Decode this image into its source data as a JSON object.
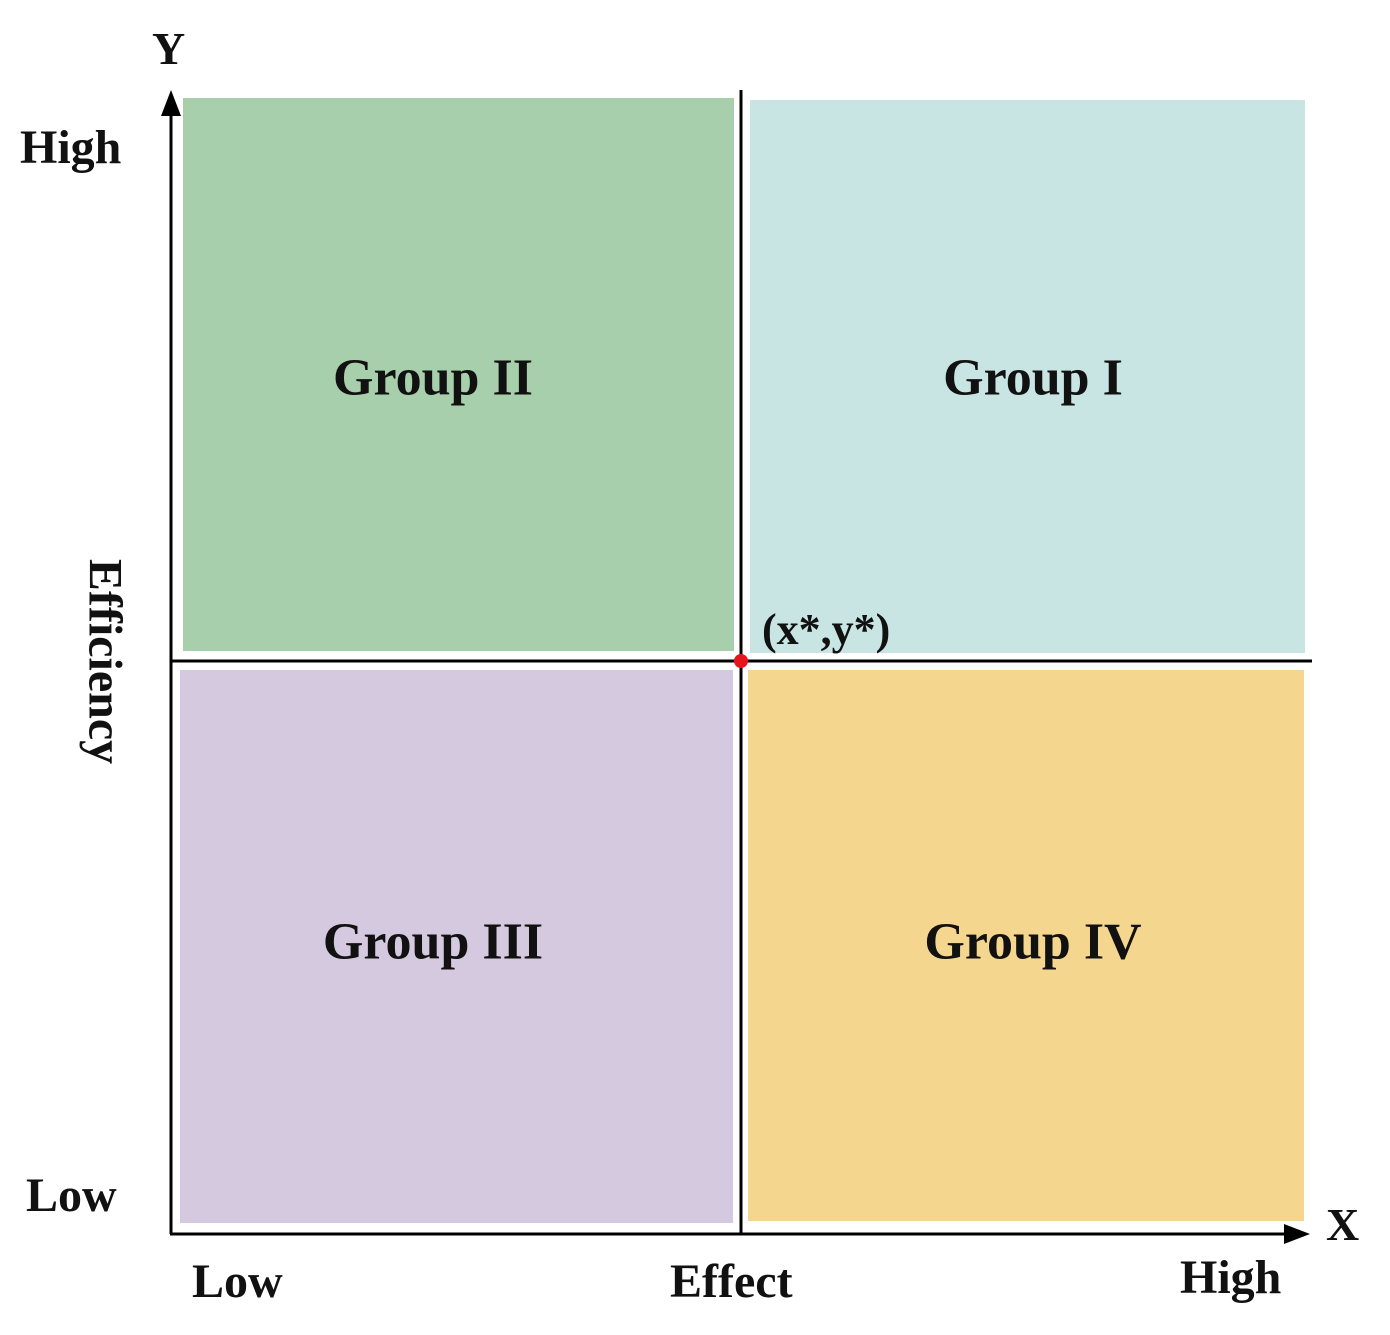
{
  "axes": {
    "y_letter": "Y",
    "x_letter": "X",
    "y_high": "High",
    "y_low": "Low",
    "y_title": "Efficiency",
    "x_low": "Low",
    "x_title": "Effect",
    "x_high": "High"
  },
  "point": {
    "label": "(x*,y*)",
    "color": "#e8141c"
  },
  "quadrants": [
    {
      "id": "group-ii",
      "label": "Group II",
      "color": "#a7cfac"
    },
    {
      "id": "group-i",
      "label": "Group I",
      "color": "#c8e5e4"
    },
    {
      "id": "group-iii",
      "label": "Group III",
      "color": "#d5c9df"
    },
    {
      "id": "group-iv",
      "label": "Group IV",
      "color": "#f5d68e"
    }
  ]
}
